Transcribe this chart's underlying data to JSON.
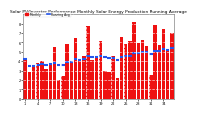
{
  "title": "Solar PV/Inverter Performance Monthly Solar Energy Production Running Average",
  "bar_values": [
    4.2,
    2.8,
    3.5,
    3.8,
    4.0,
    3.2,
    3.6,
    5.5,
    2.0,
    2.4,
    5.8,
    3.9,
    6.5,
    4.2,
    4.6,
    7.8,
    4.1,
    4.3,
    6.2,
    3.0,
    2.8,
    4.5,
    2.2,
    6.6,
    5.8,
    6.1,
    8.2,
    5.9,
    6.3,
    5.6,
    2.5,
    7.9,
    5.7,
    7.4,
    5.2,
    7.0
  ],
  "running_avg": [
    4.2,
    3.5,
    3.5,
    3.6,
    3.7,
    3.6,
    3.7,
    3.8,
    3.6,
    3.6,
    3.9,
    3.9,
    4.2,
    4.1,
    4.2,
    4.5,
    4.4,
    4.4,
    4.6,
    4.4,
    4.3,
    4.3,
    4.1,
    4.4,
    4.5,
    4.6,
    4.9,
    4.9,
    5.0,
    5.0,
    4.8,
    5.1,
    5.1,
    5.3,
    5.2,
    5.4
  ],
  "bar_color": "#ee1111",
  "avg_color": "#2255ee",
  "bg_color": "#ffffff",
  "grid_color": "#bbbbbb",
  "ylim": [
    0,
    9.0
  ],
  "title_fontsize": 3.2,
  "tick_fontsize": 2.5,
  "legend_fontsize": 2.2,
  "n_bars": 36,
  "yticks": [
    0,
    1,
    2,
    3,
    4,
    5,
    6,
    7,
    8
  ],
  "ytick_labels": [
    "0",
    "1",
    "2",
    "3",
    "4",
    "5",
    "6",
    "7",
    "8"
  ]
}
